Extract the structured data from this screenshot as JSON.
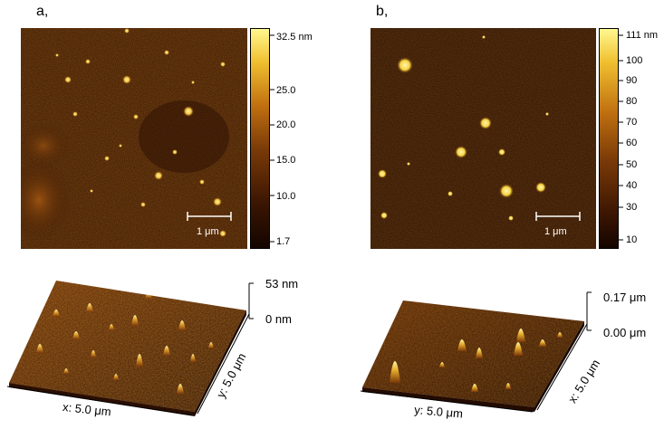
{
  "panels": [
    {
      "label": "a,",
      "scale_bar": "1 μm",
      "colorbar_ticks": [
        "32.5 nm",
        "25.0",
        "20.0",
        "15.0",
        "10.0",
        "1.7"
      ],
      "z_top": "53 nm",
      "z_bottom": "0 nm",
      "x_axis": "x: 5.0 μm",
      "y_axis": "y: 5.0 μm"
    },
    {
      "label": "b,",
      "scale_bar": "1 μm",
      "colorbar_ticks": [
        "111 nm",
        "100",
        "90",
        "80",
        "70",
        "60",
        "50",
        "40",
        "30",
        "10"
      ],
      "z_top": "0.17 μm",
      "z_bottom": "0.00 μm",
      "x_axis": "y: 5.0 μm",
      "y_axis": "x: 5.0 μm"
    }
  ],
  "colors": {
    "colormap_dark": "#1a0800",
    "colormap_mid": "#a85a10",
    "colormap_bright": "#fff890"
  }
}
